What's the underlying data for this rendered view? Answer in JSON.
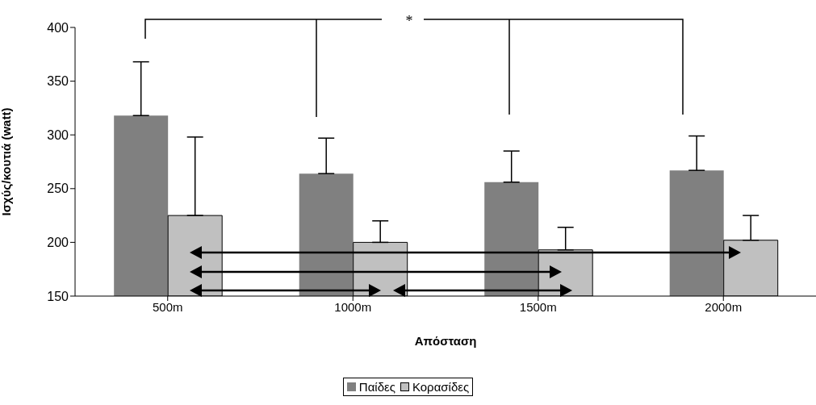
{
  "chart_data": {
    "type": "bar",
    "xlabel": "Απόσταση",
    "ylabel": "Ισχύς/κουτιά (watt)",
    "categories": [
      "500m",
      "1000m",
      "1500m",
      "2000m"
    ],
    "series": [
      {
        "name": "Παίδες",
        "color": "#808080",
        "values": [
          318,
          264,
          256,
          267
        ],
        "errors": [
          [
            318,
            368
          ],
          [
            264,
            297
          ],
          [
            256,
            285
          ],
          [
            267,
            299
          ]
        ]
      },
      {
        "name": "Κορασίδες",
        "color": "#c0c0c0",
        "values": [
          225,
          200,
          193,
          202
        ],
        "errors": [
          [
            225,
            298
          ],
          [
            200,
            220
          ],
          [
            193,
            214
          ],
          [
            202,
            225
          ]
        ]
      }
    ],
    "ylim": [
      150,
      400
    ],
    "yticks": [
      150,
      200,
      250,
      300,
      350,
      400
    ],
    "legend": "bottom",
    "annotations": [
      "*"
    ]
  }
}
